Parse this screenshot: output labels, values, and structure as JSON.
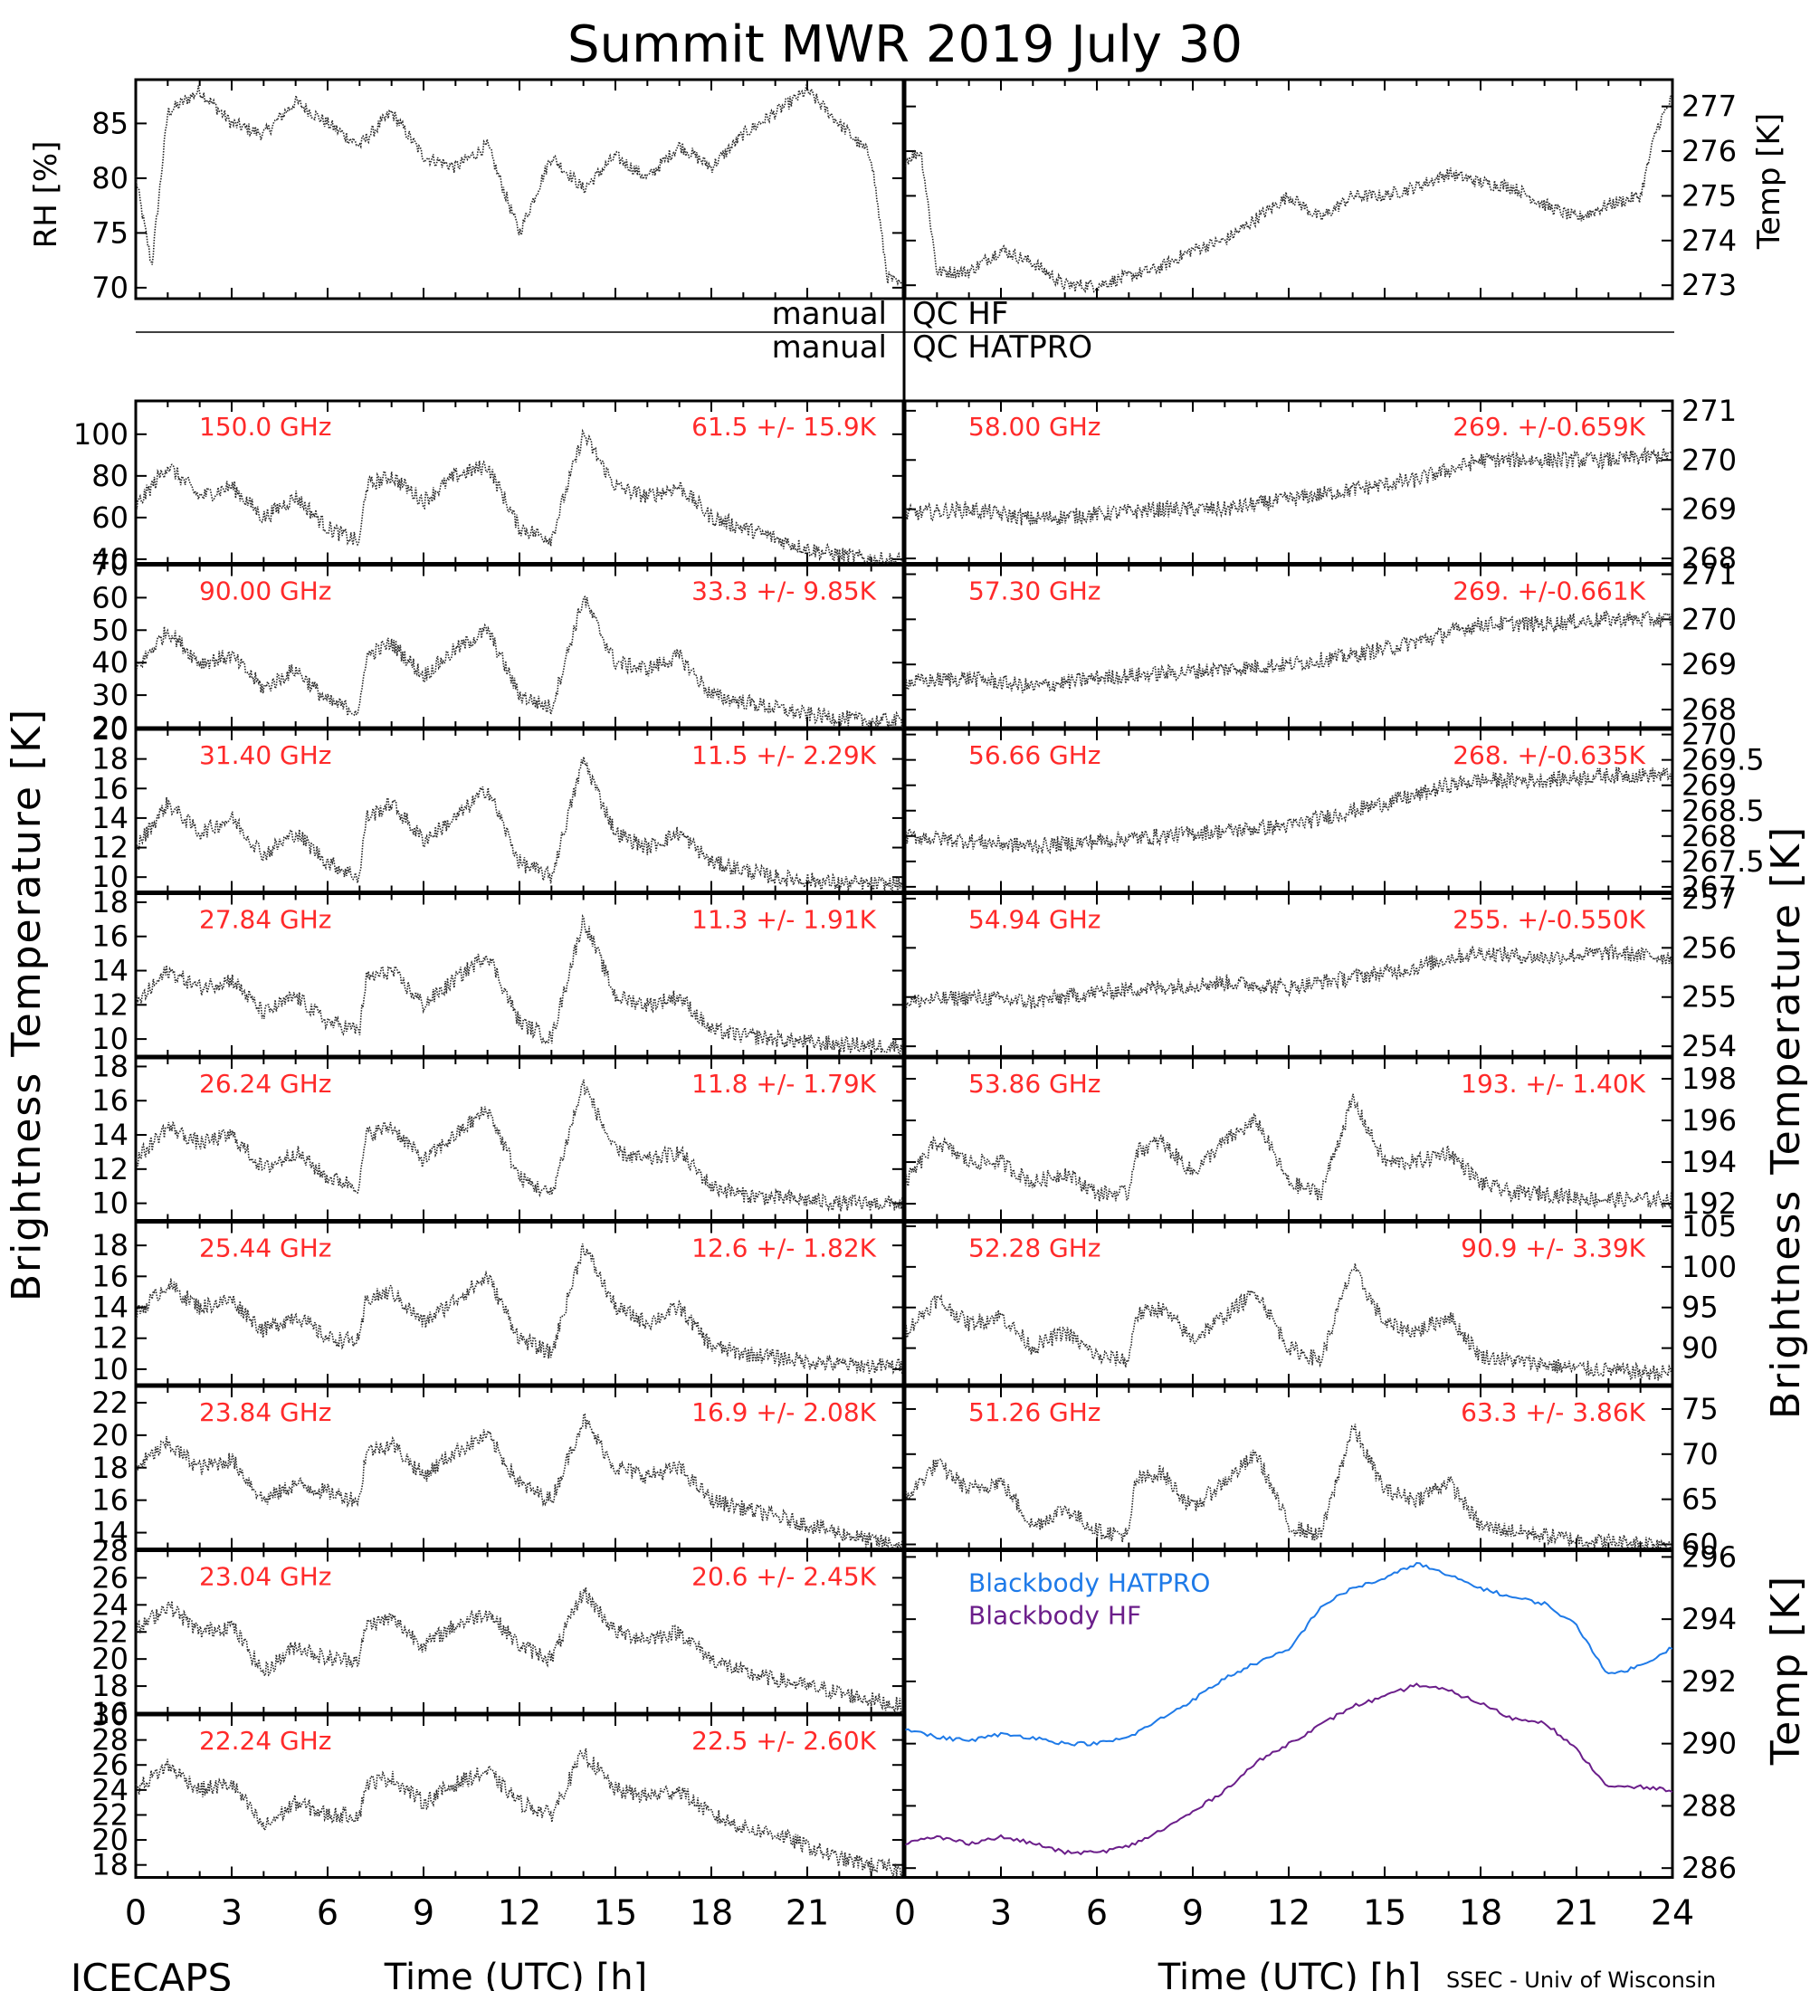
{
  "title": "Summit MWR 2019 July 30",
  "footer": {
    "left": "ICECAPS",
    "right": "SSEC - Univ of Wisconsin"
  },
  "axis_labels": {
    "time": "Time (UTC) [h]",
    "brightness_left": "Brightness Temperature [K]",
    "brightness_right": "Brightness Temperature [K]",
    "rh": "RH [%]",
    "temp_met": "Temp [K]",
    "temp_bb": "Temp [K]"
  },
  "qc": {
    "hf": {
      "left": "manual",
      "right": "QC HF"
    },
    "hatpro": {
      "left": "manual",
      "right": "QC HATPRO"
    }
  },
  "colors": {
    "red_label": "#ff2a2a",
    "hatpro_line": "#1e7ae8",
    "hf_line": "#6b1e8a"
  },
  "chart_data": [
    {
      "type": "scatter",
      "title": "",
      "ylabel": "RH [%]",
      "xlim": [
        0,
        24
      ],
      "ylim": [
        69,
        89
      ],
      "yticks": [
        70,
        75,
        80,
        85
      ],
      "x": [
        0,
        0.5,
        1,
        2,
        3,
        4,
        5,
        6,
        7,
        8,
        9,
        10,
        11,
        12,
        13,
        14,
        15,
        16,
        17,
        18,
        19,
        20,
        21,
        22,
        23,
        23.5,
        24
      ],
      "values": [
        80,
        72,
        86,
        88,
        85,
        84,
        87,
        85,
        83,
        86,
        82,
        81,
        83,
        75,
        82,
        79,
        82,
        80,
        83,
        81,
        84,
        86,
        88,
        85,
        82,
        71,
        70
      ]
    },
    {
      "type": "scatter",
      "title": "",
      "ylabel": "Temp [K]",
      "xlim": [
        0,
        24
      ],
      "ylim": [
        272.7,
        277.6
      ],
      "yticks": [
        273,
        274,
        275,
        276,
        277
      ],
      "x": [
        0,
        0.5,
        1,
        2,
        3,
        4,
        5,
        6,
        7,
        8,
        9,
        10,
        11,
        12,
        13,
        14,
        15,
        16,
        17,
        18,
        19,
        20,
        21,
        22,
        23,
        23.5,
        24
      ],
      "values": [
        275.8,
        276,
        273.3,
        273.3,
        273.8,
        273.5,
        273,
        273,
        273.2,
        273.4,
        273.8,
        274,
        274.5,
        275,
        274.5,
        275,
        275,
        275.2,
        275.5,
        275.3,
        275.2,
        274.8,
        274.5,
        274.8,
        275,
        276.5,
        277.2
      ]
    },
    {
      "type": "scatter",
      "title": "150.0 GHz",
      "stats": "61.5 +/- 15.9K",
      "xlim": [
        0,
        24
      ],
      "ylim": [
        38,
        116
      ],
      "yticks": [
        40,
        60,
        80,
        100
      ],
      "x": [
        0,
        1,
        2,
        3,
        4,
        5,
        6,
        7,
        7.2,
        8,
        9,
        10,
        11,
        12,
        13,
        14,
        15,
        16,
        17,
        18,
        19,
        20,
        21,
        22,
        23,
        24
      ],
      "values": [
        65,
        85,
        70,
        75,
        60,
        70,
        55,
        48,
        75,
        80,
        68,
        80,
        85,
        55,
        50,
        100,
        75,
        70,
        75,
        60,
        55,
        50,
        45,
        42,
        40,
        39
      ]
    },
    {
      "type": "scatter",
      "title": "90.00 GHz",
      "stats": "33.3 +/- 9.85K",
      "xlim": [
        0,
        24
      ],
      "ylim": [
        20,
        70
      ],
      "yticks": [
        20,
        30,
        40,
        50,
        60,
        70
      ],
      "x": [
        0,
        1,
        2,
        3,
        4,
        5,
        6,
        7,
        7.2,
        8,
        9,
        10,
        11,
        12,
        13,
        14,
        15,
        16,
        17,
        18,
        19,
        20,
        21,
        22,
        23,
        24
      ],
      "values": [
        38,
        50,
        40,
        42,
        32,
        38,
        28,
        25,
        42,
        46,
        36,
        44,
        50,
        30,
        26,
        60,
        40,
        38,
        42,
        30,
        28,
        26,
        24,
        23,
        22,
        22
      ]
    },
    {
      "type": "scatter",
      "title": "31.40 GHz",
      "stats": "11.5 +/- 2.29K",
      "xlim": [
        0,
        24
      ],
      "ylim": [
        9,
        20
      ],
      "yticks": [
        10,
        12,
        14,
        16,
        18,
        20
      ],
      "x": [
        0,
        1,
        2,
        3,
        4,
        5,
        6,
        7,
        7.2,
        8,
        9,
        10,
        11,
        12,
        13,
        14,
        15,
        16,
        17,
        18,
        19,
        20,
        21,
        22,
        23,
        24
      ],
      "values": [
        12,
        15,
        13,
        14,
        11.5,
        13,
        11,
        10,
        14,
        15,
        12.5,
        14,
        16,
        11,
        10,
        18,
        13,
        12,
        13,
        11,
        10.5,
        10,
        9.8,
        9.6,
        9.5,
        9.5
      ]
    },
    {
      "type": "scatter",
      "title": "27.84 GHz",
      "stats": "11.3 +/- 1.91K",
      "xlim": [
        0,
        24
      ],
      "ylim": [
        9,
        18.5
      ],
      "yticks": [
        10,
        12,
        14,
        16,
        18
      ],
      "x": [
        0,
        1,
        2,
        3,
        4,
        5,
        6,
        7,
        7.2,
        8,
        9,
        10,
        11,
        12,
        13,
        14,
        15,
        16,
        17,
        18,
        19,
        20,
        21,
        22,
        23,
        24
      ],
      "values": [
        12,
        14,
        13,
        13.5,
        11.5,
        12.5,
        11,
        10.5,
        13.5,
        14,
        12,
        13.5,
        15,
        11,
        10,
        17,
        12.5,
        12,
        12.5,
        10.5,
        10.2,
        10,
        9.8,
        9.7,
        9.6,
        9.6
      ]
    },
    {
      "type": "scatter",
      "title": "26.24 GHz",
      "stats": "11.8 +/- 1.79K",
      "xlim": [
        0,
        24
      ],
      "ylim": [
        9,
        18.5
      ],
      "yticks": [
        10,
        12,
        14,
        16,
        18
      ],
      "x": [
        0,
        1,
        2,
        3,
        4,
        5,
        6,
        7,
        7.2,
        8,
        9,
        10,
        11,
        12,
        13,
        14,
        15,
        16,
        17,
        18,
        19,
        20,
        21,
        22,
        23,
        24
      ],
      "values": [
        12.5,
        14.5,
        13.5,
        14,
        12,
        13,
        11.5,
        11,
        14,
        14.5,
        12.5,
        14,
        15.5,
        11.5,
        10.5,
        17,
        13,
        12.5,
        13,
        11,
        10.5,
        10.3,
        10.2,
        10,
        10,
        10
      ]
    },
    {
      "type": "scatter",
      "title": "25.44 GHz",
      "stats": "12.6 +/- 1.82K",
      "xlim": [
        0,
        24
      ],
      "ylim": [
        9,
        19.5
      ],
      "yticks": [
        10,
        12,
        14,
        16,
        18
      ],
      "x": [
        0,
        1,
        2,
        3,
        4,
        5,
        6,
        7,
        7.2,
        8,
        9,
        10,
        11,
        12,
        13,
        14,
        15,
        16,
        17,
        18,
        19,
        20,
        21,
        22,
        23,
        24
      ],
      "values": [
        13.5,
        15.5,
        14,
        14.5,
        12.5,
        13.5,
        12,
        11.8,
        14.5,
        15,
        13,
        14.5,
        16,
        12,
        11,
        18,
        14,
        13,
        14,
        11.5,
        11,
        10.8,
        10.5,
        10.3,
        10.2,
        10.2
      ]
    },
    {
      "type": "scatter",
      "title": "23.84 GHz",
      "stats": "16.9 +/- 2.08K",
      "xlim": [
        0,
        24
      ],
      "ylim": [
        13,
        23
      ],
      "yticks": [
        14,
        16,
        18,
        20,
        22
      ],
      "x": [
        0,
        1,
        2,
        3,
        4,
        5,
        6,
        7,
        7.2,
        8,
        9,
        10,
        11,
        12,
        13,
        14,
        15,
        16,
        17,
        18,
        19,
        20,
        21,
        22,
        23,
        24
      ],
      "values": [
        18,
        19.5,
        18,
        18.5,
        16,
        17,
        16.5,
        16,
        19,
        19.5,
        17.5,
        19,
        20,
        17,
        16,
        21,
        18,
        17.5,
        18,
        16,
        15.5,
        15,
        14.5,
        14,
        13.5,
        13.2
      ]
    },
    {
      "type": "scatter",
      "title": "23.04 GHz",
      "stats": "20.6 +/- 2.45K",
      "xlim": [
        0,
        24
      ],
      "ylim": [
        16,
        28
      ],
      "yticks": [
        16,
        18,
        20,
        22,
        24,
        26,
        28
      ],
      "x": [
        0,
        1,
        2,
        3,
        4,
        5,
        6,
        7,
        7.2,
        8,
        9,
        10,
        11,
        12,
        13,
        14,
        15,
        16,
        17,
        18,
        19,
        20,
        21,
        22,
        23,
        24
      ],
      "values": [
        22,
        24,
        22,
        22.5,
        19,
        21,
        20,
        20,
        22.5,
        23,
        21,
        22.5,
        23.5,
        21,
        20,
        25,
        22,
        21.5,
        22,
        20,
        19,
        18.5,
        18,
        17.5,
        17,
        16.5
      ]
    },
    {
      "type": "scatter",
      "title": "22.24 GHz",
      "stats": "22.5 +/- 2.60K",
      "xlim": [
        0,
        24
      ],
      "ylim": [
        17,
        30
      ],
      "yticks": [
        18,
        20,
        22,
        24,
        26,
        28,
        30
      ],
      "x": [
        0,
        1,
        2,
        3,
        4,
        5,
        6,
        7,
        7.2,
        8,
        9,
        10,
        11,
        12,
        13,
        14,
        15,
        16,
        17,
        18,
        19,
        20,
        21,
        22,
        23,
        24
      ],
      "values": [
        24,
        26,
        24,
        24.5,
        21,
        23,
        22,
        22,
        24.5,
        25,
        23,
        24.5,
        25.5,
        23,
        22,
        27,
        24,
        23.5,
        24,
        22,
        21,
        20.5,
        19.5,
        18.5,
        18,
        17.5
      ]
    },
    {
      "type": "scatter",
      "title": "58.00 GHz",
      "stats": "269. +/-0.659K",
      "xlim": [
        0,
        24
      ],
      "ylim": [
        267.9,
        271.2
      ],
      "yticks": [
        268,
        269,
        270,
        271
      ],
      "x": [
        0,
        2,
        4,
        6,
        8,
        10,
        12,
        14,
        16,
        17,
        18,
        20,
        22,
        24
      ],
      "values": [
        268.9,
        269,
        268.8,
        268.9,
        269,
        269,
        269.2,
        269.4,
        269.6,
        269.8,
        270,
        270,
        270,
        270.1
      ]
    },
    {
      "type": "scatter",
      "title": "57.30 GHz",
      "stats": "269. +/-0.661K",
      "xlim": [
        0,
        24
      ],
      "ylim": [
        267.6,
        271.2
      ],
      "yticks": [
        268,
        269,
        270,
        271
      ],
      "x": [
        0,
        2,
        4,
        6,
        8,
        10,
        12,
        14,
        16,
        17,
        18,
        20,
        22,
        24
      ],
      "values": [
        268.6,
        268.7,
        268.5,
        268.7,
        268.8,
        268.9,
        269,
        269.2,
        269.5,
        269.7,
        269.9,
        269.9,
        270,
        270
      ]
    },
    {
      "type": "scatter",
      "title": "56.66 GHz",
      "stats": "268. +/-0.635K",
      "xlim": [
        0,
        24
      ],
      "ylim": [
        266.9,
        270.1
      ],
      "yticks": [
        267,
        267.5,
        268,
        268.5,
        269,
        269.5,
        270
      ],
      "x": [
        0,
        2,
        4,
        6,
        8,
        10,
        12,
        14,
        16,
        17,
        18,
        20,
        22,
        24
      ],
      "values": [
        268,
        267.9,
        267.8,
        267.9,
        268,
        268.1,
        268.2,
        268.5,
        268.8,
        269,
        269.1,
        269.1,
        269.2,
        269.2
      ]
    },
    {
      "type": "scatter",
      "title": "54.94 GHz",
      "stats": "255. +/-0.550K",
      "xlim": [
        0,
        24
      ],
      "ylim": [
        253.8,
        257.1
      ],
      "yticks": [
        254,
        255,
        256,
        257
      ],
      "x": [
        0,
        2,
        4,
        6,
        8,
        10,
        12,
        14,
        16,
        17,
        18,
        20,
        22,
        24
      ],
      "values": [
        254.9,
        255,
        254.9,
        255.1,
        255.2,
        255.3,
        255.2,
        255.4,
        255.6,
        255.8,
        255.9,
        255.8,
        255.9,
        255.8
      ]
    },
    {
      "type": "scatter",
      "title": "53.86 GHz",
      "stats": "193. +/- 1.40K",
      "xlim": [
        0,
        24
      ],
      "ylim": [
        191.2,
        199
      ],
      "yticks": [
        192,
        194,
        196,
        198
      ],
      "x": [
        0,
        1,
        2,
        3,
        4,
        5,
        6,
        7,
        7.2,
        8,
        9,
        10,
        11,
        12,
        13,
        14,
        15,
        16,
        17,
        18,
        19,
        20,
        21,
        22,
        23,
        24
      ],
      "values": [
        193,
        195,
        194,
        194,
        193,
        193.5,
        192.5,
        192.5,
        194.5,
        195,
        193.5,
        195,
        196,
        193,
        192.5,
        197,
        194,
        194,
        194.5,
        193,
        192.5,
        192.5,
        192.3,
        192.2,
        192.2,
        192.2
      ]
    },
    {
      "type": "scatter",
      "title": "52.28 GHz",
      "stats": "90.9 +/- 3.39K",
      "xlim": [
        0,
        24
      ],
      "ylim": [
        85.5,
        105.5
      ],
      "yticks": [
        90,
        95,
        100,
        105
      ],
      "x": [
        0,
        1,
        2,
        3,
        4,
        5,
        6,
        7,
        7.2,
        8,
        9,
        10,
        11,
        12,
        13,
        14,
        15,
        16,
        17,
        18,
        19,
        20,
        21,
        22,
        23,
        24
      ],
      "values": [
        92,
        96,
        93,
        94,
        90,
        92,
        89,
        88.5,
        94,
        95,
        91,
        94,
        97,
        90,
        88.5,
        100,
        93,
        92,
        94,
        89,
        88.5,
        88,
        87.5,
        87.3,
        87,
        87
      ]
    },
    {
      "type": "scatter",
      "title": "51.26 GHz",
      "stats": "63.3 +/- 3.86K",
      "xlim": [
        0,
        24
      ],
      "ylim": [
        59.5,
        77.5
      ],
      "yticks": [
        60,
        65,
        70,
        75
      ],
      "x": [
        0,
        1,
        2,
        3,
        4,
        5,
        6,
        7,
        7.2,
        8,
        9,
        10,
        11,
        12,
        13,
        14,
        15,
        16,
        17,
        18,
        19,
        20,
        21,
        22,
        23,
        24
      ],
      "values": [
        65,
        69,
        66,
        67,
        62,
        64,
        61.5,
        61,
        67,
        68,
        64,
        67,
        70,
        62,
        61,
        73,
        66,
        65,
        67,
        62,
        61.5,
        61,
        60.5,
        60.3,
        60.2,
        60.2
      ]
    },
    {
      "type": "line",
      "title": "",
      "ylabel": "Temp [K]",
      "xlim": [
        0,
        24
      ],
      "ylim": [
        285.7,
        296.2
      ],
      "yticks": [
        286,
        288,
        290,
        292,
        294,
        296
      ],
      "x": [
        0,
        1,
        2,
        3,
        4,
        5,
        6,
        7,
        8,
        9,
        10,
        11,
        12,
        13,
        14,
        15,
        16,
        17,
        18,
        19,
        20,
        21,
        22,
        23,
        24
      ],
      "series": [
        {
          "name": "Blackbody HATPRO",
          "values": [
            290.5,
            290.2,
            290.1,
            290.3,
            290.2,
            290,
            290,
            290.2,
            290.8,
            291.4,
            292.1,
            292.6,
            293,
            294.4,
            295,
            295.3,
            295.8,
            295.4,
            295,
            294.7,
            294.5,
            293.8,
            292.2,
            292.5,
            293.1
          ]
        },
        {
          "name": "Blackbody HF",
          "values": [
            286.8,
            287,
            286.8,
            287,
            286.8,
            286.5,
            286.5,
            286.7,
            287.2,
            287.8,
            288.5,
            289.4,
            290,
            290.6,
            291.2,
            291.5,
            291.9,
            291.7,
            291.3,
            290.8,
            290.7,
            289.8,
            288.6,
            288.6,
            288.5
          ]
        }
      ]
    }
  ]
}
